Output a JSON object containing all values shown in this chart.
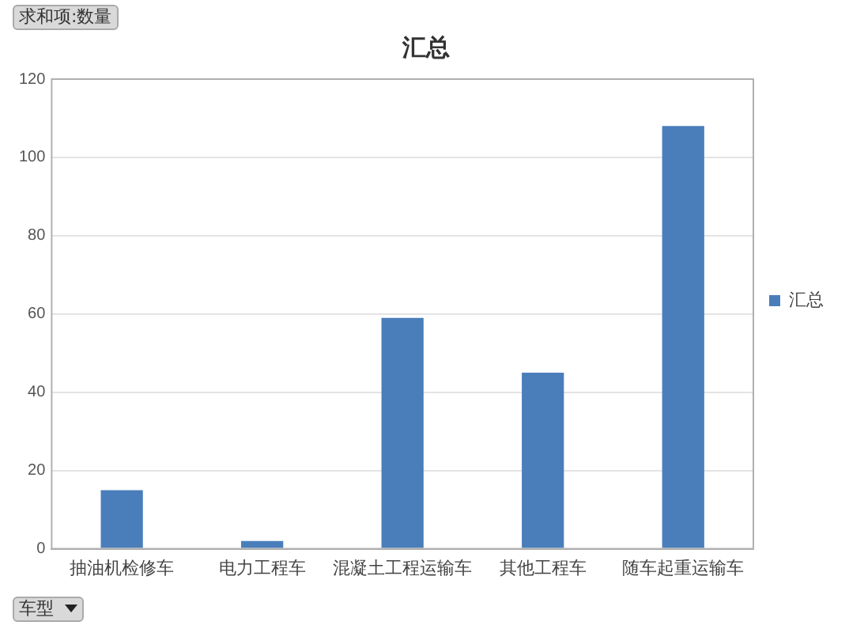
{
  "chart_data": {
    "type": "bar",
    "title": "汇总",
    "categories": [
      "抽油机检修车",
      "电力工程车",
      "混凝土工程运输车",
      "其他工程车",
      "随车起重运输车"
    ],
    "series": [
      {
        "name": "汇总",
        "color": "#4a7ebb",
        "values": [
          15,
          2,
          59,
          45,
          108
        ]
      }
    ],
    "ylim": [
      0,
      120
    ],
    "yticks": [
      0,
      20,
      40,
      60,
      80,
      100,
      120
    ],
    "grid": "y",
    "legend": "right",
    "annotations": [
      "求和项:数量",
      "车型"
    ]
  }
}
